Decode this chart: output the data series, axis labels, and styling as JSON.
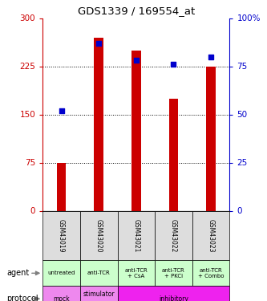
{
  "title": "GDS1339 / 169554_at",
  "samples": [
    "GSM43019",
    "GSM43020",
    "GSM43021",
    "GSM43022",
    "GSM43023"
  ],
  "counts": [
    75,
    270,
    250,
    175,
    225
  ],
  "percentile_ranks": [
    52,
    87,
    78,
    76,
    80
  ],
  "ylim_left": [
    0,
    300
  ],
  "ylim_right": [
    0,
    100
  ],
  "yticks_left": [
    0,
    75,
    150,
    225,
    300
  ],
  "yticks_right": [
    0,
    25,
    50,
    75,
    100
  ],
  "bar_color": "#cc0000",
  "dot_color": "#0000cc",
  "agent_labels": [
    "untreated",
    "anti-TCR",
    "anti-TCR\n+ CsA",
    "anti-TCR\n+ PKCi",
    "anti-TCR\n+ Combo"
  ],
  "agent_bg": "#ccffcc",
  "sample_bg": "#dddddd",
  "protocol_entries": [
    {
      "start": 0,
      "end": 0,
      "label": "mock",
      "color": "#ee88ee"
    },
    {
      "start": 1,
      "end": 1,
      "label": "stimulator\ny",
      "color": "#ee88ee"
    },
    {
      "start": 2,
      "end": 4,
      "label": "inhibitory",
      "color": "#ee22ee"
    }
  ],
  "legend_count_color": "#cc0000",
  "legend_pct_color": "#0000cc"
}
